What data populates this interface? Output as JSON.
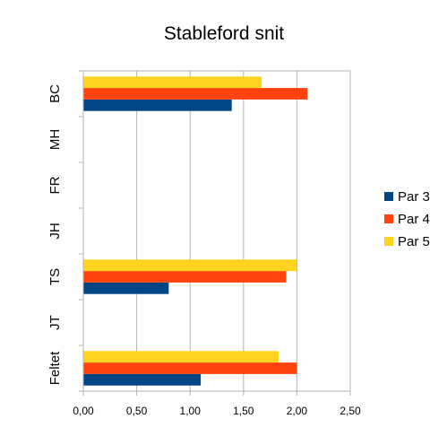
{
  "chart_data": {
    "type": "bar",
    "orientation": "horizontal",
    "title": "Stableford snit",
    "categories": [
      "BC",
      "MH",
      "FR",
      "JH",
      "TS",
      "JT",
      "Feltet"
    ],
    "series": [
      {
        "name": "Par 3",
        "color": "#004586",
        "values": [
          1.39,
          0,
          0,
          0,
          0.8,
          0,
          1.1
        ]
      },
      {
        "name": "Par 4",
        "color": "#ff420e",
        "values": [
          2.1,
          0,
          0,
          0,
          1.9,
          0,
          2.0
        ]
      },
      {
        "name": "Par 5",
        "color": "#ffd320",
        "values": [
          1.67,
          0,
          0,
          0,
          2.0,
          0,
          1.83
        ]
      }
    ],
    "xlim": [
      0,
      2.5
    ],
    "xticks": [
      "0,00",
      "0,50",
      "1,00",
      "1,50",
      "2,00",
      "2,50"
    ],
    "grid": true,
    "legend_position": "right"
  }
}
